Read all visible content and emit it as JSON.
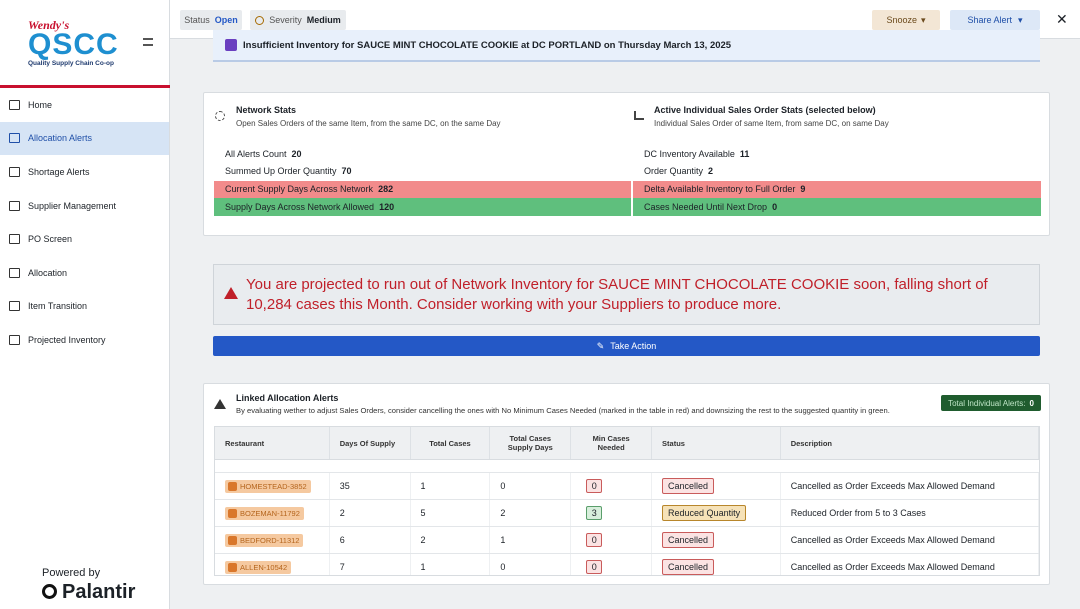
{
  "sidebar": {
    "brand": "Wendy's",
    "logo": "QSCC",
    "tagline": "Quality Supply Chain Co-op",
    "nav": [
      "Home",
      "Allocation Alerts",
      "Shortage Alerts",
      "Supplier Management",
      "PO Screen",
      "Allocation",
      "Item Transition",
      "Projected Inventory"
    ],
    "selected": 1,
    "powered_by": "Powered by",
    "vendor": "Palantir"
  },
  "topbar": {
    "status_label": "Status",
    "status_value": "Open",
    "severity_label": "Severity",
    "severity_value": "Medium",
    "snooze": "Snooze",
    "share": "Share Alert"
  },
  "alert_title": "Insufficient Inventory for SAUCE MINT CHOCOLATE COOKIE at DC PORTLAND on Thursday March 13, 2025",
  "network_stats": {
    "title": "Network Stats",
    "subtitle": "Open Sales Orders of the same Item, from the same DC, on the same Day",
    "rows": [
      {
        "label": "All Alerts Count",
        "value": 20
      },
      {
        "label": "Summed Up Order Quantity",
        "value": 70
      },
      {
        "label": "Current Supply Days Across Network",
        "value": 282
      },
      {
        "label": "Supply Days Across Network Allowed",
        "value": 120
      }
    ]
  },
  "order_stats": {
    "title": "Active Individual Sales Order Stats (selected below)",
    "subtitle": "Individual Sales Order of same Item, from same DC, on same Day",
    "rows": [
      {
        "label": "DC Inventory Available",
        "value": 11
      },
      {
        "label": "Order Quantity",
        "value": 2
      },
      {
        "label": "Delta Available Inventory to Full Order",
        "value": 9
      },
      {
        "label": "Cases Needed Until Next Drop",
        "value": 0
      }
    ]
  },
  "warning": "You are projected to run out of Network Inventory for SAUCE MINT CHOCOLATE COOKIE soon, falling short of 10,284 cases this Month. Consider working with your Suppliers to produce more.",
  "take_action": "Take Action",
  "linked": {
    "title": "Linked Allocation Alerts",
    "description": "By evaluating wether to adjust Sales Orders, consider cancelling the ones with No Minimum Cases Needed (marked in the table in red) and downsizing the rest to the suggested quantity in green.",
    "total_label": "Total Individual Alerts:",
    "total_value": 0,
    "columns": [
      "Restaurant",
      "Days Of Supply",
      "Total Cases",
      "Total Cases Supply Days",
      "Min Cases Needed",
      "Status",
      "Description"
    ],
    "rows": [
      [
        "HOMESTEAD-3852",
        35,
        1,
        0,
        0,
        "Cancelled",
        "Cancelled as Order Exceeds Max Allowed Demand"
      ],
      [
        "BOZEMAN-11792",
        2,
        5,
        2,
        3,
        "Reduced Quantity",
        "Reduced Order from 5 to 3 Cases"
      ],
      [
        "BEDFORD-11312",
        6,
        2,
        1,
        0,
        "Cancelled",
        "Cancelled as Order Exceeds Max Allowed Demand"
      ],
      [
        "ALLEN-10542",
        7,
        1,
        0,
        0,
        "Cancelled",
        "Cancelled as Order Exceeds Max Allowed Demand"
      ]
    ]
  }
}
